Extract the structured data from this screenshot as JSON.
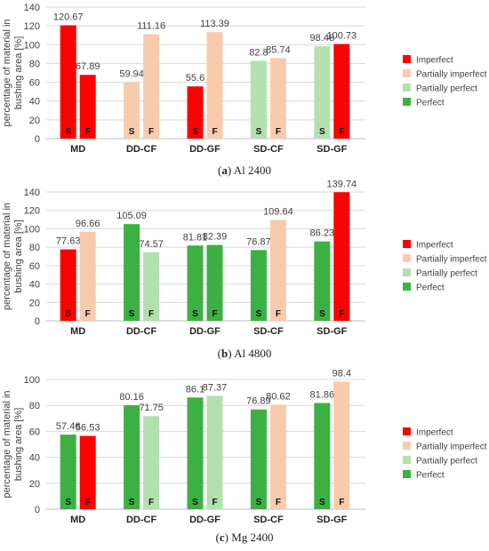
{
  "colors": {
    "Imperfect": "#ff0000",
    "Partially imperfect": "#f8cbad",
    "Partially perfect": "#b4e0b0",
    "Perfect": "#3cb043"
  },
  "legend": [
    "Imperfect",
    "Partially imperfect",
    "Partially perfect",
    "Perfect"
  ],
  "ylabel_lines": [
    "percentage of material in",
    "bushing area [%]"
  ],
  "captions": [
    {
      "prefix": "(",
      "letter": "a",
      "suffix": ") Al 2400"
    },
    {
      "prefix": "(",
      "letter": "b",
      "suffix": ") Al 4800"
    },
    {
      "prefix": "(",
      "letter": "c",
      "suffix": ") Mg 2400"
    }
  ],
  "chart_data": [
    {
      "type": "bar",
      "title": "",
      "ylabel": "percentage of material in bushing area [%]",
      "ylim": [
        0,
        140
      ],
      "yticks": [
        0,
        20,
        40,
        60,
        80,
        100,
        120,
        140
      ],
      "grid": true,
      "legend_position": "right",
      "categories": [
        "MD",
        "DD-CF",
        "DD-GF",
        "SD-CF",
        "SD-GF"
      ],
      "bar_labels": [
        "S",
        "F"
      ],
      "values": [
        [
          120.67,
          67.89
        ],
        [
          59.94,
          111.16
        ],
        [
          55.6,
          113.39
        ],
        [
          82.8,
          85.74
        ],
        [
          98.48,
          100.73
        ]
      ],
      "classes": [
        [
          "Imperfect",
          "Imperfect"
        ],
        [
          "Partially imperfect",
          "Partially imperfect"
        ],
        [
          "Imperfect",
          "Partially imperfect"
        ],
        [
          "Partially perfect",
          "Partially imperfect"
        ],
        [
          "Partially perfect",
          "Imperfect"
        ]
      ]
    },
    {
      "type": "bar",
      "title": "",
      "ylabel": "percentage of material in bushing area [%]",
      "ylim": [
        0,
        140
      ],
      "yticks": [
        0,
        20,
        40,
        60,
        80,
        100,
        120,
        140
      ],
      "grid": true,
      "legend_position": "right",
      "categories": [
        "MD",
        "DD-CF",
        "DD-GF",
        "SD-CF",
        "SD-GF"
      ],
      "bar_labels": [
        "S",
        "F"
      ],
      "values": [
        [
          77.63,
          96.66
        ],
        [
          105.09,
          74.57
        ],
        [
          81.81,
          82.39
        ],
        [
          76.87,
          109.64
        ],
        [
          86.23,
          139.74
        ]
      ],
      "classes": [
        [
          "Imperfect",
          "Partially imperfect"
        ],
        [
          "Perfect",
          "Partially perfect"
        ],
        [
          "Perfect",
          "Perfect"
        ],
        [
          "Perfect",
          "Partially imperfect"
        ],
        [
          "Perfect",
          "Imperfect"
        ]
      ]
    },
    {
      "type": "bar",
      "title": "",
      "ylabel": "percentage of material in bushing area [%]",
      "ylim": [
        0,
        100
      ],
      "yticks": [
        0,
        20,
        40,
        60,
        80,
        100
      ],
      "grid": true,
      "legend_position": "right",
      "categories": [
        "MD",
        "DD-CF",
        "DD-GF",
        "SD-CF",
        "SD-GF"
      ],
      "bar_labels": [
        "S",
        "F"
      ],
      "values": [
        [
          57.46,
          56.53
        ],
        [
          80.16,
          71.75
        ],
        [
          86.1,
          87.37
        ],
        [
          76.89,
          80.62
        ],
        [
          81.86,
          98.4
        ]
      ],
      "classes": [
        [
          "Perfect",
          "Imperfect"
        ],
        [
          "Perfect",
          "Partially perfect"
        ],
        [
          "Perfect",
          "Partially perfect"
        ],
        [
          "Perfect",
          "Partially imperfect"
        ],
        [
          "Perfect",
          "Partially imperfect"
        ]
      ]
    }
  ]
}
